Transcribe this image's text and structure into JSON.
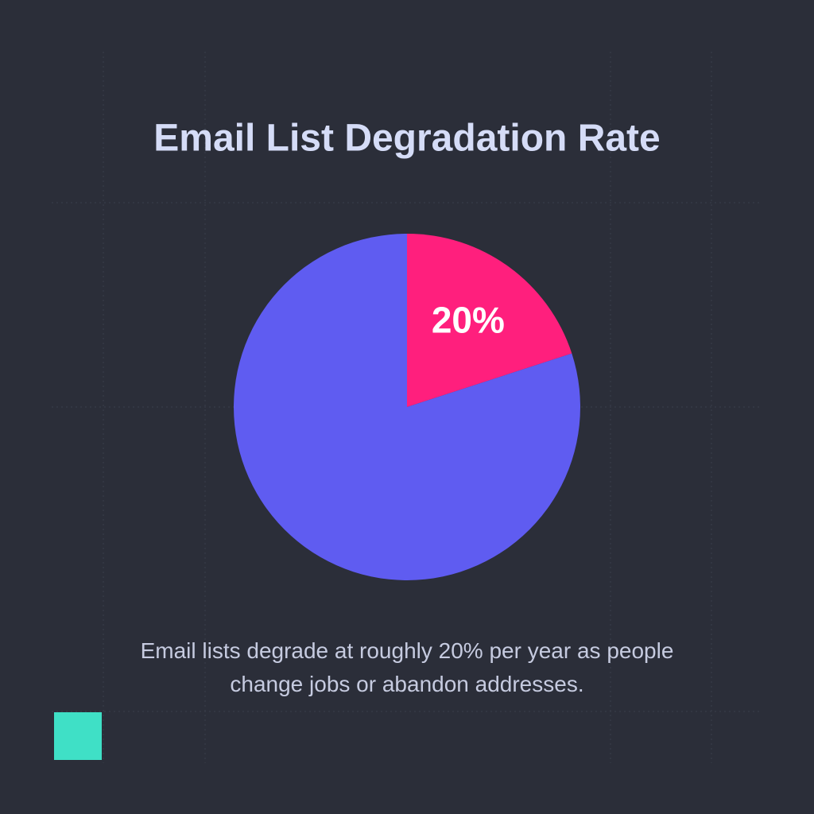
{
  "chart_data": {
    "type": "pie",
    "title": "Email List Degradation Rate",
    "values": [
      20,
      80
    ],
    "value_labels": [
      "20%",
      null
    ],
    "colors": [
      "#ff1f7d",
      "#5f5cf1"
    ],
    "annotation": "Email lists degrade at roughly 20% per year as people change jobs or abandon addresses."
  }
}
